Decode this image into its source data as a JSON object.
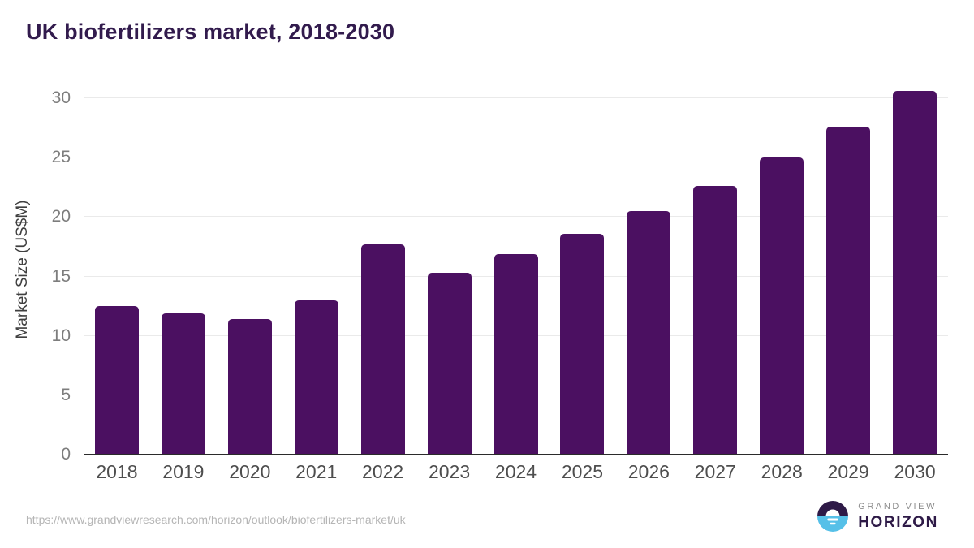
{
  "title": "UK biofertilizers market, 2018-2030",
  "source_url": "https://www.grandviewresearch.com/horizon/outlook/biofertilizers-market/uk",
  "logo": {
    "line1": "GRAND VIEW",
    "line2": "HORIZON"
  },
  "colors": {
    "bar": "#4b1061",
    "title": "#321b4d",
    "grid": "#eaeaea",
    "axis_line": "#2b2b2b",
    "y_tick": "#7d7d7d",
    "x_tick": "#4e4e4e",
    "axis_title": "#3f3f3f",
    "url_text": "#b5b5b5",
    "logo_blue": "#56c0e8",
    "logo_dark": "#2e1a47",
    "logo_gray": "#8c8c8c"
  },
  "chart_data": {
    "type": "bar",
    "title": "UK biofertilizers market, 2018-2030",
    "categories": [
      "2018",
      "2019",
      "2020",
      "2021",
      "2022",
      "2023",
      "2024",
      "2025",
      "2026",
      "2027",
      "2028",
      "2029",
      "2030"
    ],
    "values": [
      12.5,
      11.9,
      11.4,
      13.0,
      17.7,
      15.3,
      16.9,
      18.6,
      20.5,
      22.6,
      25.0,
      27.6,
      30.6
    ],
    "xlabel": "",
    "ylabel": "Market Size (US$M)",
    "ylim": [
      0,
      31.1
    ],
    "yticks": [
      0,
      5,
      10,
      15,
      20,
      25,
      30
    ],
    "grid": true,
    "legend_position": "none",
    "bar_color": "#4b1061"
  }
}
